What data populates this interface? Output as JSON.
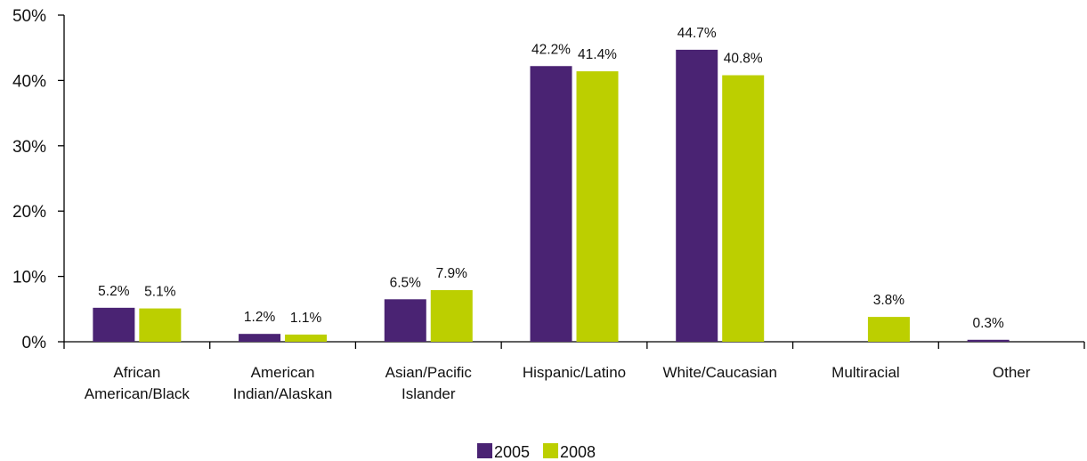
{
  "chart_data": {
    "type": "bar",
    "categories": [
      [
        "African",
        "American/Black"
      ],
      [
        "American",
        "Indian/Alaskan"
      ],
      [
        "Asian/Pacific",
        "Islander"
      ],
      [
        "Hispanic/Latino"
      ],
      [
        "White/Caucasian"
      ],
      [
        "Multiracial"
      ],
      [
        "Other"
      ]
    ],
    "series": [
      {
        "name": "2005",
        "color": "#4a2373",
        "values": [
          5.2,
          1.2,
          6.5,
          42.2,
          44.7,
          null,
          0.3
        ],
        "labels": [
          "5.2%",
          "1.2%",
          "6.5%",
          "42.2%",
          "44.7%",
          "",
          "0.3%"
        ]
      },
      {
        "name": "2008",
        "color": "#bccf00",
        "values": [
          5.1,
          1.1,
          7.9,
          41.4,
          40.8,
          3.8,
          null
        ],
        "labels": [
          "5.1%",
          "1.1%",
          "7.9%",
          "41.4%",
          "40.8%",
          "3.8%",
          ""
        ]
      }
    ],
    "y_ticks": [
      "0%",
      "10%",
      "20%",
      "30%",
      "40%",
      "50%"
    ],
    "ylim": [
      0,
      50
    ],
    "title": "",
    "xlabel": "",
    "ylabel": "",
    "legend": "bottom-center",
    "grid": false
  }
}
